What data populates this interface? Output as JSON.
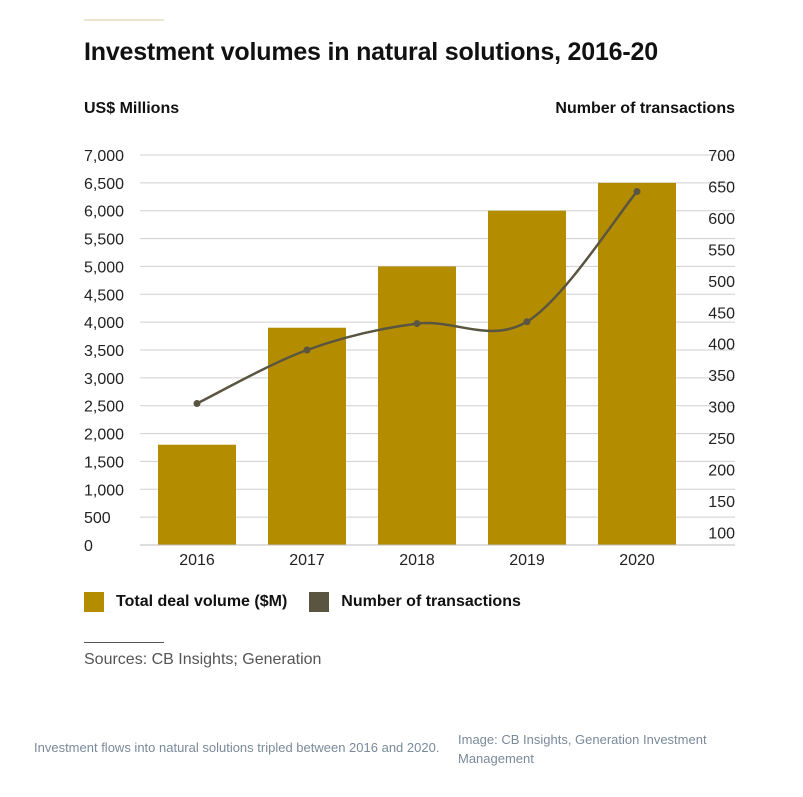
{
  "chart_data": {
    "type": "bar",
    "title": "Investment volumes in natural solutions, 2016-20",
    "left_axis_title": "US$ Millions",
    "right_axis_title": "Number of transactions",
    "categories": [
      "2016",
      "2017",
      "2018",
      "2019",
      "2020"
    ],
    "left_ticks": [
      "0",
      "500",
      "1,000",
      "1,500",
      "2,000",
      "2,500",
      "3,000",
      "3,500",
      "4,000",
      "4,500",
      "5,000",
      "5,500",
      "6,000",
      "6,500",
      "7,000"
    ],
    "right_ticks": [
      "100",
      "150",
      "200",
      "250",
      "300",
      "350",
      "400",
      "450",
      "500",
      "550",
      "600",
      "650",
      "700"
    ],
    "ylim": [
      0,
      7000
    ],
    "y2lim": [
      80,
      700
    ],
    "grid": true,
    "legend_position": "bottom-left",
    "series": [
      {
        "name": "Total deal volume ($M)",
        "kind": "bar",
        "axis": "left",
        "color": "#b38c00",
        "values": [
          1800,
          3900,
          5000,
          6000,
          6500
        ]
      },
      {
        "name": "Number of transactions",
        "kind": "line",
        "axis": "right",
        "color": "#5a5540",
        "values": [
          305,
          390,
          432,
          435,
          642
        ]
      }
    ]
  },
  "sources": "Sources: CB Insights; Generation",
  "caption": "Investment flows into natural solutions tripled between 2016 and 2020.",
  "credit": "Image: CB Insights, Generation Investment Management"
}
